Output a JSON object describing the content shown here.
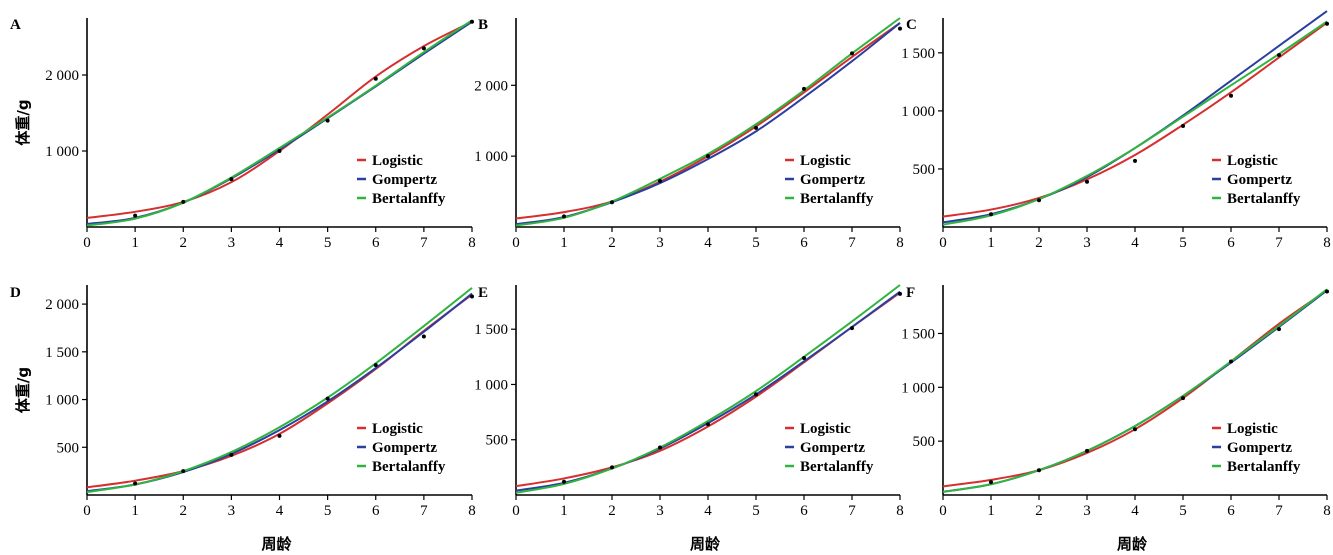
{
  "figure": {
    "ylabel": "体重/g",
    "xlabel": "周龄"
  },
  "colors": {
    "Logistic": "#d62f2f",
    "Gompertz": "#2a3fa0",
    "Bertalanffy": "#2fb53f"
  },
  "legend_labels": [
    "Logistic",
    "Gompertz",
    "Bertalanffy"
  ],
  "chart_data": [
    {
      "panel": "A",
      "type": "line",
      "xlim": [
        0,
        8
      ],
      "ylim": [
        0,
        2750
      ],
      "xticks": [
        0,
        1,
        2,
        3,
        4,
        5,
        6,
        7,
        8
      ],
      "yticks": [
        1000,
        2000
      ],
      "ytick_labels": [
        "1 000",
        "2 000"
      ],
      "legend_position": "lower-right",
      "observed": {
        "x": [
          1,
          2,
          3,
          4,
          5,
          6,
          7,
          8
        ],
        "y": [
          150,
          330,
          630,
          1000,
          1400,
          1950,
          2350,
          2700
        ]
      },
      "series": [
        {
          "name": "Logistic",
          "x": [
            0,
            1,
            2,
            3,
            4,
            5,
            6,
            7,
            8
          ],
          "y": [
            120,
            200,
            330,
            590,
            1000,
            1480,
            1980,
            2380,
            2700
          ]
        },
        {
          "name": "Gompertz",
          "x": [
            0,
            1,
            2,
            3,
            4,
            5,
            6,
            7,
            8
          ],
          "y": [
            40,
            120,
            320,
            640,
            1020,
            1430,
            1850,
            2280,
            2700
          ]
        },
        {
          "name": "Bertalanffy",
          "x": [
            0,
            1,
            2,
            3,
            4,
            5,
            6,
            7,
            8
          ],
          "y": [
            20,
            110,
            320,
            650,
            1040,
            1440,
            1860,
            2300,
            2720
          ]
        }
      ]
    },
    {
      "panel": "B",
      "type": "line",
      "xlim": [
        0,
        8
      ],
      "ylim": [
        0,
        2950
      ],
      "xticks": [
        0,
        1,
        2,
        3,
        4,
        5,
        6,
        7,
        8
      ],
      "yticks": [
        1000,
        2000
      ],
      "ytick_labels": [
        "1 000",
        "2 000"
      ],
      "legend_position": "lower-right",
      "observed": {
        "x": [
          1,
          2,
          3,
          4,
          5,
          6,
          7,
          8
        ],
        "y": [
          150,
          350,
          650,
          1000,
          1400,
          1950,
          2450,
          2800
        ]
      },
      "series": [
        {
          "name": "Logistic",
          "x": [
            0,
            1,
            2,
            3,
            4,
            5,
            6,
            7,
            8
          ],
          "y": [
            120,
            210,
            360,
            640,
            1000,
            1420,
            1900,
            2400,
            2880
          ]
        },
        {
          "name": "Gompertz",
          "x": [
            0,
            1,
            2,
            3,
            4,
            5,
            6,
            7,
            8
          ],
          "y": [
            40,
            140,
            350,
            620,
            960,
            1350,
            1830,
            2340,
            2880
          ]
        },
        {
          "name": "Bertalanffy",
          "x": [
            0,
            1,
            2,
            3,
            4,
            5,
            6,
            7,
            8
          ],
          "y": [
            20,
            130,
            360,
            680,
            1030,
            1450,
            1930,
            2450,
            2950
          ]
        }
      ]
    },
    {
      "panel": "C",
      "type": "line",
      "xlim": [
        0,
        8
      ],
      "ylim": [
        0,
        1800
      ],
      "xticks": [
        0,
        1,
        2,
        3,
        4,
        5,
        6,
        7,
        8
      ],
      "yticks": [
        500,
        1000,
        1500
      ],
      "ytick_labels": [
        "500",
        "1 000",
        "1 500"
      ],
      "legend_position": "lower-right",
      "observed": {
        "x": [
          1,
          2,
          3,
          4,
          5,
          6,
          7,
          8
        ],
        "y": [
          110,
          230,
          390,
          570,
          870,
          1130,
          1480,
          1750
        ]
      },
      "series": [
        {
          "name": "Logistic",
          "x": [
            0,
            1,
            2,
            3,
            4,
            5,
            6,
            7,
            8
          ],
          "y": [
            90,
            150,
            250,
            410,
            620,
            880,
            1160,
            1460,
            1760
          ]
        },
        {
          "name": "Gompertz",
          "x": [
            0,
            1,
            2,
            3,
            4,
            5,
            6,
            7,
            8
          ],
          "y": [
            40,
            110,
            240,
            430,
            680,
            960,
            1260,
            1560,
            1860
          ]
        },
        {
          "name": "Bertalanffy",
          "x": [
            0,
            1,
            2,
            3,
            4,
            5,
            6,
            7,
            8
          ],
          "y": [
            20,
            100,
            240,
            440,
            680,
            950,
            1220,
            1490,
            1770
          ]
        }
      ]
    },
    {
      "panel": "D",
      "type": "line",
      "xlim": [
        0,
        8
      ],
      "ylim": [
        0,
        2200
      ],
      "xticks": [
        0,
        1,
        2,
        3,
        4,
        5,
        6,
        7,
        8
      ],
      "yticks": [
        500,
        1000,
        1500,
        2000
      ],
      "ytick_labels": [
        "500",
        "1 000",
        "1 500",
        "2 000"
      ],
      "legend_position": "lower-right",
      "observed": {
        "x": [
          1,
          2,
          3,
          4,
          5,
          6,
          7,
          8
        ],
        "y": [
          120,
          250,
          420,
          620,
          1010,
          1360,
          1660,
          2080
        ]
      },
      "series": [
        {
          "name": "Logistic",
          "x": [
            0,
            1,
            2,
            3,
            4,
            5,
            6,
            7,
            8
          ],
          "y": [
            80,
            150,
            250,
            410,
            640,
            960,
            1320,
            1720,
            2100
          ]
        },
        {
          "name": "Gompertz",
          "x": [
            0,
            1,
            2,
            3,
            4,
            5,
            6,
            7,
            8
          ],
          "y": [
            40,
            110,
            240,
            430,
            680,
            980,
            1330,
            1710,
            2110
          ]
        },
        {
          "name": "Bertalanffy",
          "x": [
            0,
            1,
            2,
            3,
            4,
            5,
            6,
            7,
            8
          ],
          "y": [
            30,
            110,
            250,
            450,
            710,
            1020,
            1380,
            1770,
            2170
          ]
        }
      ]
    },
    {
      "panel": "E",
      "type": "line",
      "xlim": [
        0,
        8
      ],
      "ylim": [
        0,
        1900
      ],
      "xticks": [
        0,
        1,
        2,
        3,
        4,
        5,
        6,
        7,
        8
      ],
      "yticks": [
        500,
        1000,
        1500
      ],
      "ytick_labels": [
        "500",
        "1 000",
        "1 500"
      ],
      "legend_position": "lower-right",
      "observed": {
        "x": [
          1,
          2,
          3,
          4,
          5,
          6,
          7,
          8
        ],
        "y": [
          120,
          250,
          430,
          640,
          910,
          1240,
          1510,
          1820
        ]
      },
      "series": [
        {
          "name": "Logistic",
          "x": [
            0,
            1,
            2,
            3,
            4,
            5,
            6,
            7,
            8
          ],
          "y": [
            80,
            150,
            250,
            400,
            620,
            890,
            1200,
            1520,
            1830
          ]
        },
        {
          "name": "Gompertz",
          "x": [
            0,
            1,
            2,
            3,
            4,
            5,
            6,
            7,
            8
          ],
          "y": [
            40,
            110,
            240,
            420,
            650,
            910,
            1210,
            1520,
            1840
          ]
        },
        {
          "name": "Bertalanffy",
          "x": [
            0,
            1,
            2,
            3,
            4,
            5,
            6,
            7,
            8
          ],
          "y": [
            20,
            100,
            240,
            430,
            670,
            940,
            1250,
            1570,
            1900
          ]
        }
      ]
    },
    {
      "panel": "F",
      "type": "line",
      "xlim": [
        0,
        8
      ],
      "ylim": [
        0,
        1950
      ],
      "xticks": [
        0,
        1,
        2,
        3,
        4,
        5,
        6,
        7,
        8
      ],
      "yticks": [
        500,
        1000,
        1500
      ],
      "ytick_labels": [
        "500",
        "1 000",
        "1 500"
      ],
      "legend_position": "lower-right",
      "observed": {
        "x": [
          1,
          2,
          3,
          4,
          5,
          6,
          7,
          8
        ],
        "y": [
          120,
          230,
          410,
          610,
          900,
          1240,
          1540,
          1890
        ]
      },
      "series": [
        {
          "name": "Logistic",
          "x": [
            0,
            1,
            2,
            3,
            4,
            5,
            6,
            7,
            8
          ],
          "y": [
            80,
            140,
            230,
            390,
            610,
            900,
            1240,
            1590,
            1900
          ]
        },
        {
          "name": "Gompertz",
          "x": [
            0,
            1,
            2,
            3,
            4,
            5,
            6,
            7,
            8
          ],
          "y": [
            30,
            100,
            230,
            410,
            640,
            920,
            1230,
            1560,
            1900
          ]
        },
        {
          "name": "Bertalanffy",
          "x": [
            0,
            1,
            2,
            3,
            4,
            5,
            6,
            7,
            8
          ],
          "y": [
            30,
            100,
            230,
            410,
            640,
            920,
            1240,
            1570,
            1910
          ]
        }
      ]
    }
  ]
}
